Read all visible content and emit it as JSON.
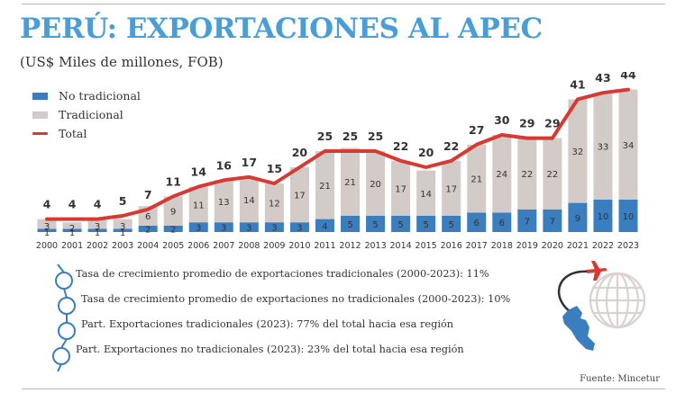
{
  "header": {
    "title": "PERÚ: EXPORTACIONES AL APEC",
    "subtitle": "(US$ Miles de millones, FOB)"
  },
  "colors": {
    "title": "#4a9ed8",
    "no_tradicional": "#3a7ec0",
    "tradicional": "#d3cbc7",
    "total_line": "#d63a33",
    "bullet_outline": "#3a7ec0"
  },
  "legend": {
    "no_tradicional": "No tradicional",
    "tradicional": "Tradicional",
    "total": "Total"
  },
  "chart_data": {
    "type": "bar",
    "stacked": true,
    "title": "PERÚ: EXPORTACIONES AL APEC",
    "subtitle": "(US$ Miles de millones, FOB)",
    "xlabel": "",
    "ylabel": "",
    "ylim": [
      0,
      44
    ],
    "grid": false,
    "legend_position": "top-left",
    "categories": [
      "2000",
      "2001",
      "2002",
      "2003",
      "2004",
      "2005",
      "2006",
      "2007",
      "2008",
      "2009",
      "2010",
      "2011",
      "2012",
      "2013",
      "2014",
      "2015",
      "2016",
      "2017",
      "2018",
      "2019",
      "2020",
      "2021",
      "2022",
      "2023"
    ],
    "series": [
      {
        "name": "No tradicional",
        "kind": "bar",
        "values": [
          1,
          1,
          1,
          1,
          2,
          2,
          3,
          3,
          3,
          3,
          3,
          4,
          5,
          5,
          5,
          5,
          5,
          6,
          6,
          7,
          7,
          9,
          10,
          10
        ]
      },
      {
        "name": "Tradicional",
        "kind": "bar",
        "values": [
          3,
          2,
          3,
          3,
          6,
          9,
          11,
          13,
          14,
          12,
          17,
          21,
          21,
          20,
          17,
          14,
          17,
          21,
          24,
          22,
          22,
          32,
          33,
          34
        ]
      },
      {
        "name": "Total",
        "kind": "line",
        "values": [
          4,
          4,
          4,
          5,
          7,
          11,
          14,
          16,
          17,
          15,
          20,
          25,
          25,
          25,
          22,
          20,
          22,
          27,
          30,
          29,
          29,
          41,
          43,
          44
        ]
      }
    ]
  },
  "bullets": [
    "Tasa de crecimiento promedio de exportaciones tradicionales (2000-2023): 11%",
    "Tasa de crecimiento promedio de exportaciones no tradicionales (2000-2023): 10%",
    "Part. Exportaciones tradicionales (2023): 77% del total hacia esa región",
    "Part. Exportaciones no tradicionales (2023): 23% del total hacia esa región"
  ],
  "icons": {
    "illustration": "peru-map-airplane-globe-icon"
  },
  "source": "Fuente: Mincetur"
}
